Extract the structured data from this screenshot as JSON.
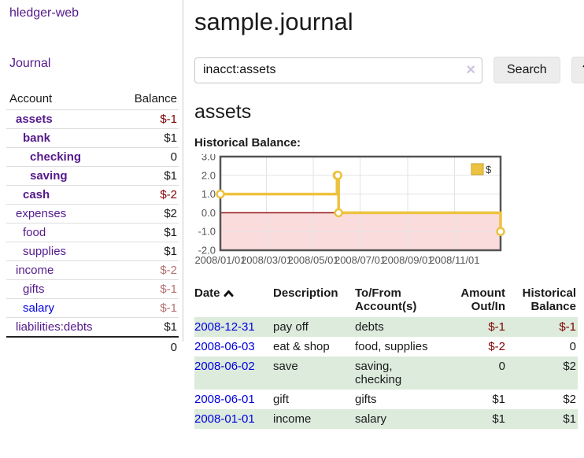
{
  "sidebar": {
    "brand": "hledger-web",
    "journal_link": "Journal",
    "accounts_table": {
      "account_header": "Account",
      "balance_header": "Balance",
      "rows": [
        {
          "name": "assets",
          "depth": 0,
          "bold": true,
          "balance": "$-1",
          "balance_class": "neg-strong"
        },
        {
          "name": "bank",
          "depth": 1,
          "bold": true,
          "balance": "$1",
          "balance_class": ""
        },
        {
          "name": "checking",
          "depth": 2,
          "bold": true,
          "balance": "0",
          "balance_class": ""
        },
        {
          "name": "saving",
          "depth": 2,
          "bold": true,
          "balance": "$1",
          "balance_class": ""
        },
        {
          "name": "cash",
          "depth": 1,
          "bold": true,
          "balance": "$-2",
          "balance_class": "neg-strong"
        },
        {
          "name": "expenses",
          "depth": 0,
          "bold": false,
          "balance": "$2",
          "balance_class": ""
        },
        {
          "name": "food",
          "depth": 1,
          "bold": false,
          "balance": "$1",
          "balance_class": ""
        },
        {
          "name": "supplies",
          "depth": 1,
          "bold": false,
          "balance": "$1",
          "balance_class": ""
        },
        {
          "name": "income",
          "depth": 0,
          "bold": false,
          "balance": "$-2",
          "balance_class": "neg-muted"
        },
        {
          "name": "gifts",
          "depth": 1,
          "bold": false,
          "balance": "$-1",
          "balance_class": "neg-muted"
        },
        {
          "name": "salary",
          "depth": 1,
          "bold": false,
          "balance": "$-1",
          "balance_class": "neg-muted",
          "link": "blue"
        },
        {
          "name": "liabilities:debts",
          "depth": 0,
          "bold": false,
          "balance": "$1",
          "balance_class": ""
        }
      ],
      "total": "0"
    }
  },
  "main": {
    "title": "sample.journal",
    "search": {
      "value": "inacct:assets",
      "clear_icon": "×",
      "search_button": "Search",
      "help_button": "?"
    },
    "account_heading": "assets",
    "chart_label": "Historical Balance:",
    "register_table": {
      "headers": {
        "date": "Date",
        "description": "Description",
        "accounts": "To/From Account(s)",
        "amount": "Amount Out/In",
        "balance": "Historical Balance"
      },
      "rows": [
        {
          "date": "2008-12-31",
          "description": "pay off",
          "accounts": "debts",
          "amount": "$-1",
          "amount_neg": true,
          "balance": "$-1",
          "balance_neg": true,
          "shaded": true
        },
        {
          "date": "2008-06-03",
          "description": "eat & shop",
          "accounts": "food, supplies",
          "amount": "$-2",
          "amount_neg": true,
          "balance": "0",
          "balance_neg": false,
          "shaded": false
        },
        {
          "date": "2008-06-02",
          "description": "save",
          "accounts": "saving, checking",
          "amount": "0",
          "amount_neg": false,
          "balance": "$2",
          "balance_neg": false,
          "shaded": true
        },
        {
          "date": "2008-06-01",
          "description": "gift",
          "accounts": "gifts",
          "amount": "$1",
          "amount_neg": false,
          "balance": "$2",
          "balance_neg": false,
          "shaded": false
        },
        {
          "date": "2008-01-01",
          "description": "income",
          "accounts": "salary",
          "amount": "$1",
          "amount_neg": false,
          "balance": "$1",
          "balance_neg": false,
          "shaded": true
        }
      ]
    }
  },
  "chart_data": {
    "type": "line",
    "title": "Historical Balance:",
    "step": true,
    "series": [
      {
        "name": "$",
        "color": "#edc240",
        "points": [
          [
            "2008-01-01",
            1
          ],
          [
            "2008-06-01",
            2
          ],
          [
            "2008-06-02",
            2
          ],
          [
            "2008-06-03",
            0
          ],
          [
            "2008-12-31",
            -1
          ]
        ]
      }
    ],
    "x_range": [
      "2008-01-01",
      "2008-12-31"
    ],
    "x_ticks": [
      "2008/01/01",
      "2008/03/01",
      "2008/05/01",
      "2008/07/01",
      "2008/09/01",
      "2008/11/01"
    ],
    "y_ticks": [
      3.0,
      2.0,
      1.0,
      0.0,
      -1.0,
      -2.0
    ],
    "ylim": [
      -2,
      3
    ],
    "grid": true,
    "legend_position": "top-right",
    "colors": {
      "negative_region": "#fbdcdc",
      "zero_line": "#8f0e0e",
      "grid_border": "#545454",
      "grid_line": "#e3e3e3",
      "tick_text": "#545454",
      "marker_fill": "#ffffff"
    }
  }
}
